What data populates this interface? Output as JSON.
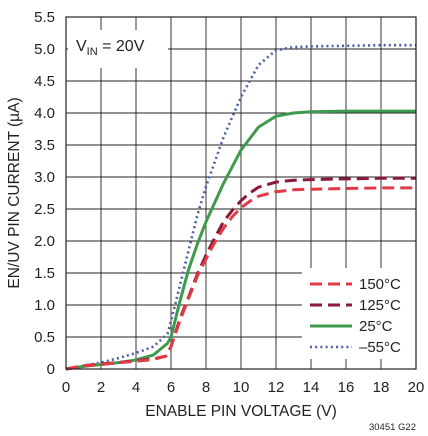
{
  "chart_data": {
    "type": "line",
    "xlabel": "ENABLE PIN VOLTAGE (V)",
    "ylabel": "EN/UV PIN CURRENT (µA)",
    "xlim": [
      0,
      20
    ],
    "ylim": [
      0,
      5.5
    ],
    "x_ticks": [
      "0",
      "2",
      "4",
      "6",
      "8",
      "10",
      "12",
      "14",
      "16",
      "18",
      "20"
    ],
    "y_ticks": [
      "0",
      "0.5",
      "1.0",
      "1.5",
      "2.0",
      "2.5",
      "3.0",
      "3.5",
      "4.0",
      "4.5",
      "5.0",
      "5.5"
    ],
    "grid": true,
    "legend_position": "bottom-right",
    "annotation": {
      "main": "V",
      "sub": "IN",
      "rest": " = 20V"
    },
    "figure_id": "30451 G22",
    "series": [
      {
        "name": "150°C",
        "color": "#e03a45",
        "dash": "dashed",
        "points": [
          [
            0,
            0
          ],
          [
            1,
            0.05
          ],
          [
            2,
            0.07
          ],
          [
            3,
            0.1
          ],
          [
            4,
            0.12
          ],
          [
            5,
            0.15
          ],
          [
            5.7,
            0.2
          ],
          [
            6,
            0.35
          ],
          [
            6.5,
            0.75
          ],
          [
            7,
            1.1
          ],
          [
            7.5,
            1.45
          ],
          [
            8,
            1.72
          ],
          [
            8.5,
            1.98
          ],
          [
            9,
            2.2
          ],
          [
            9.5,
            2.38
          ],
          [
            10,
            2.52
          ],
          [
            10.5,
            2.62
          ],
          [
            11,
            2.7
          ],
          [
            12,
            2.77
          ],
          [
            13,
            2.8
          ],
          [
            14,
            2.81
          ],
          [
            16,
            2.82
          ],
          [
            18,
            2.83
          ],
          [
            20,
            2.83
          ]
        ]
      },
      {
        "name": "125°C",
        "color": "#8b1a3a",
        "dash": "dashed",
        "points": [
          [
            0,
            0
          ],
          [
            1,
            0.05
          ],
          [
            2,
            0.08
          ],
          [
            3,
            0.1
          ],
          [
            4,
            0.13
          ],
          [
            5,
            0.16
          ],
          [
            5.7,
            0.2
          ],
          [
            6,
            0.35
          ],
          [
            6.5,
            0.78
          ],
          [
            7,
            1.12
          ],
          [
            7.5,
            1.48
          ],
          [
            8,
            1.78
          ],
          [
            8.5,
            2.05
          ],
          [
            9,
            2.3
          ],
          [
            9.5,
            2.48
          ],
          [
            10,
            2.63
          ],
          [
            10.5,
            2.75
          ],
          [
            11,
            2.84
          ],
          [
            12,
            2.92
          ],
          [
            13,
            2.95
          ],
          [
            14,
            2.96
          ],
          [
            16,
            2.97
          ],
          [
            18,
            2.98
          ],
          [
            20,
            2.98
          ]
        ]
      },
      {
        "name": "25°C",
        "color": "#3e9a4e",
        "dash": "solid",
        "points": [
          [
            0,
            0
          ],
          [
            1,
            0.04
          ],
          [
            2,
            0.07
          ],
          [
            3,
            0.1
          ],
          [
            4,
            0.14
          ],
          [
            5,
            0.22
          ],
          [
            5.8,
            0.4
          ],
          [
            6,
            0.5
          ],
          [
            6.5,
            1.05
          ],
          [
            7,
            1.55
          ],
          [
            7.5,
            1.95
          ],
          [
            8,
            2.3
          ],
          [
            9,
            2.9
          ],
          [
            10,
            3.42
          ],
          [
            11,
            3.78
          ],
          [
            12,
            3.95
          ],
          [
            13,
            4.0
          ],
          [
            14,
            4.02
          ],
          [
            16,
            4.03
          ],
          [
            18,
            4.03
          ],
          [
            20,
            4.03
          ]
        ]
      },
      {
        "name": "–55°C",
        "color": "#4a5ea8",
        "dash": "dotted",
        "points": [
          [
            0,
            0
          ],
          [
            1,
            0.05
          ],
          [
            2,
            0.1
          ],
          [
            3,
            0.17
          ],
          [
            4,
            0.25
          ],
          [
            5,
            0.35
          ],
          [
            5.8,
            0.55
          ],
          [
            6,
            0.75
          ],
          [
            6.5,
            1.3
          ],
          [
            7,
            1.85
          ],
          [
            7.5,
            2.4
          ],
          [
            8,
            2.85
          ],
          [
            9,
            3.62
          ],
          [
            10,
            4.25
          ],
          [
            11,
            4.75
          ],
          [
            12,
            4.98
          ],
          [
            13,
            5.03
          ],
          [
            14,
            5.04
          ],
          [
            16,
            5.05
          ],
          [
            18,
            5.06
          ],
          [
            20,
            5.06
          ]
        ]
      }
    ]
  }
}
